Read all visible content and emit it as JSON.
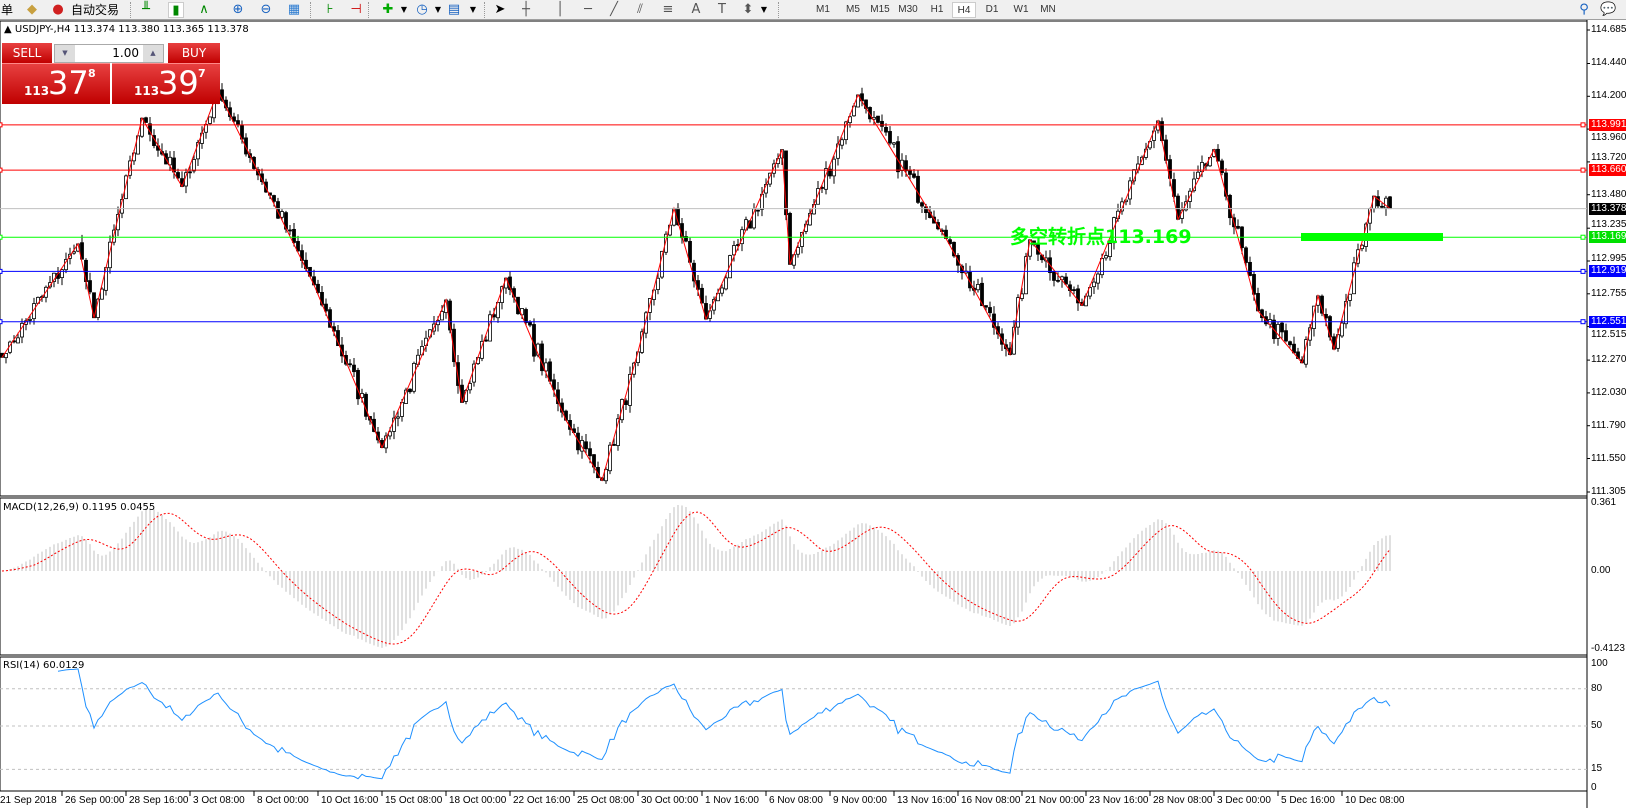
{
  "toolbar": {
    "order_label": "单",
    "autotrade_label": "自动交易",
    "timeframes": [
      "M1",
      "M5",
      "M15",
      "M30",
      "H1",
      "H4",
      "D1",
      "W1",
      "MN"
    ],
    "active_timeframe": "H4"
  },
  "chart_header": {
    "text": "USDJPY-,H4  113.374 113.380 113.365 113.378"
  },
  "trade_panel": {
    "sell_label": "SELL",
    "buy_label": "BUY",
    "lot_value": "1.00",
    "sell_big": "113",
    "sell_main": "37",
    "sell_sup": "8",
    "buy_big": "113",
    "buy_main": "39",
    "buy_sup": "7"
  },
  "price_axis": {
    "labels": [
      "114.685",
      "114.440",
      "114.200",
      "113.960",
      "113.720",
      "113.480",
      "113.235",
      "112.995",
      "112.755",
      "112.515",
      "112.270",
      "112.030",
      "111.790",
      "111.550",
      "111.305"
    ],
    "max": 114.685,
    "min": 111.305
  },
  "hlines": [
    {
      "price": 113.991,
      "label": "113.991",
      "color": "#ff0000"
    },
    {
      "price": 113.66,
      "label": "113.660",
      "color": "#ff0000"
    },
    {
      "price": 113.378,
      "label": "113.378",
      "color": "#000000",
      "line": "#c0c0c0"
    },
    {
      "price": 113.169,
      "label": "113.169",
      "color": "#00e000",
      "line": "#00ff00"
    },
    {
      "price": 112.919,
      "label": "112.919",
      "color": "#0000ff"
    },
    {
      "price": 112.551,
      "label": "112.551",
      "color": "#0000ff"
    }
  ],
  "annotation": {
    "text": "多空转折点113.169",
    "color": "#00ff00"
  },
  "zigzag_pivots": [
    [
      0,
      112.29
    ],
    [
      19,
      113.12
    ],
    [
      23,
      112.58
    ],
    [
      35,
      114.04
    ],
    [
      45,
      113.54
    ],
    [
      54,
      114.24
    ],
    [
      78,
      112.82
    ],
    [
      95,
      111.63
    ],
    [
      111,
      112.71
    ],
    [
      115,
      111.96
    ],
    [
      126,
      112.87
    ],
    [
      141,
      111.83
    ],
    [
      150,
      111.39
    ],
    [
      159,
      112.33
    ],
    [
      168,
      113.38
    ],
    [
      176,
      112.57
    ],
    [
      195,
      113.81
    ],
    [
      197,
      112.97
    ],
    [
      214,
      114.21
    ],
    [
      236,
      113.16
    ],
    [
      252,
      112.31
    ],
    [
      257,
      113.15
    ],
    [
      270,
      112.67
    ],
    [
      289,
      114.02
    ],
    [
      294,
      113.3
    ],
    [
      303,
      113.81
    ],
    [
      314,
      112.63
    ],
    [
      325,
      112.25
    ],
    [
      329,
      112.74
    ],
    [
      333,
      112.35
    ],
    [
      343,
      113.47
    ],
    [
      347,
      113.378
    ]
  ],
  "macd": {
    "header": "MACD(12,26,9) 0.1195 0.0455",
    "axis": [
      "0.361",
      "0.00",
      "-0.4123"
    ],
    "max": 0.361,
    "min": -0.4123
  },
  "rsi": {
    "header": "RSI(14) 60.0129",
    "axis": [
      "100",
      "80",
      "50",
      "15",
      "0"
    ],
    "levels": [
      80,
      50,
      15
    ]
  },
  "dates": [
    "21 Sep 2018",
    "26 Sep 00:00",
    "28 Sep 16:00",
    "3 Oct 08:00",
    "8 Oct 00:00",
    "10 Oct 16:00",
    "15 Oct 08:00",
    "18 Oct 00:00",
    "22 Oct 16:00",
    "25 Oct 08:00",
    "30 Oct 00:00",
    "1 Nov 16:00",
    "6 Nov 08:00",
    "9 Nov 00:00",
    "13 Nov 16:00",
    "16 Nov 08:00",
    "21 Nov 00:00",
    "23 Nov 16:00",
    "28 Nov 08:00",
    "3 Dec 00:00",
    "5 Dec 16:00",
    "10 Dec 08:00"
  ],
  "colors": {
    "zigzag": "#ff0000",
    "macd_hist": "#c0c0c0",
    "macd_signal": "#ff0000",
    "rsi": "#1e90ff",
    "trade": "#d01010"
  }
}
